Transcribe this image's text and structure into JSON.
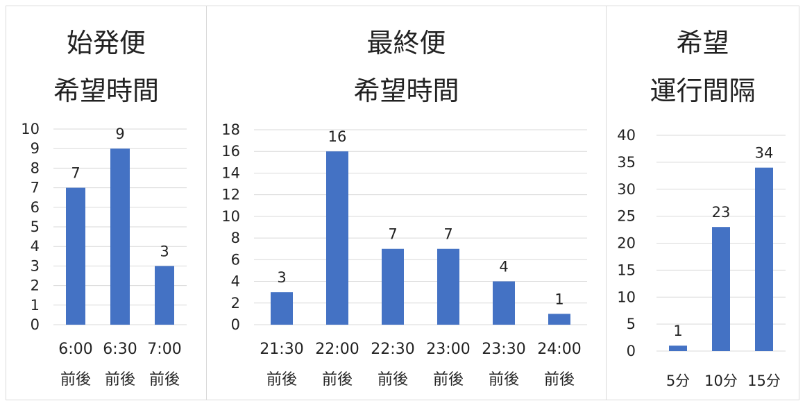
{
  "bar_color": "#4472C4",
  "grid_color": "#d9d9d9",
  "panels": [
    {
      "title_lines": [
        "始発便",
        "希望時間"
      ]
    },
    {
      "title_lines": [
        "最終便",
        "希望時間"
      ]
    },
    {
      "title_lines": [
        "希望",
        "運行間隔"
      ]
    }
  ],
  "chart_data": [
    {
      "type": "bar",
      "title": "始発便 希望時間",
      "categories": [
        [
          "6:00",
          "前後"
        ],
        [
          "6:30",
          "前後"
        ],
        [
          "7:00",
          "前後"
        ]
      ],
      "values": [
        7,
        9,
        3
      ],
      "ylim": [
        0,
        10
      ],
      "yticks": [
        0,
        1,
        2,
        3,
        4,
        5,
        6,
        7,
        8,
        9,
        10
      ],
      "grid": true,
      "data_labels": true
    },
    {
      "type": "bar",
      "title": "最終便 希望時間",
      "categories": [
        [
          "21:30",
          "前後"
        ],
        [
          "22:00",
          "前後"
        ],
        [
          "22:30",
          "前後"
        ],
        [
          "23:00",
          "前後"
        ],
        [
          "23:30",
          "前後"
        ],
        [
          "24:00",
          "前後"
        ]
      ],
      "values": [
        3,
        16,
        7,
        7,
        4,
        1
      ],
      "ylim": [
        0,
        18
      ],
      "yticks": [
        0,
        2,
        4,
        6,
        8,
        10,
        12,
        14,
        16,
        18
      ],
      "grid": true,
      "data_labels": true
    },
    {
      "type": "bar",
      "title": "希望 運行間隔",
      "categories": [
        [
          "5分"
        ],
        [
          "10分"
        ],
        [
          "15分"
        ]
      ],
      "values": [
        1,
        23,
        34
      ],
      "ylim": [
        0,
        40
      ],
      "yticks": [
        0,
        5,
        10,
        15,
        20,
        25,
        30,
        35,
        40
      ],
      "grid": true,
      "data_labels": true
    }
  ]
}
